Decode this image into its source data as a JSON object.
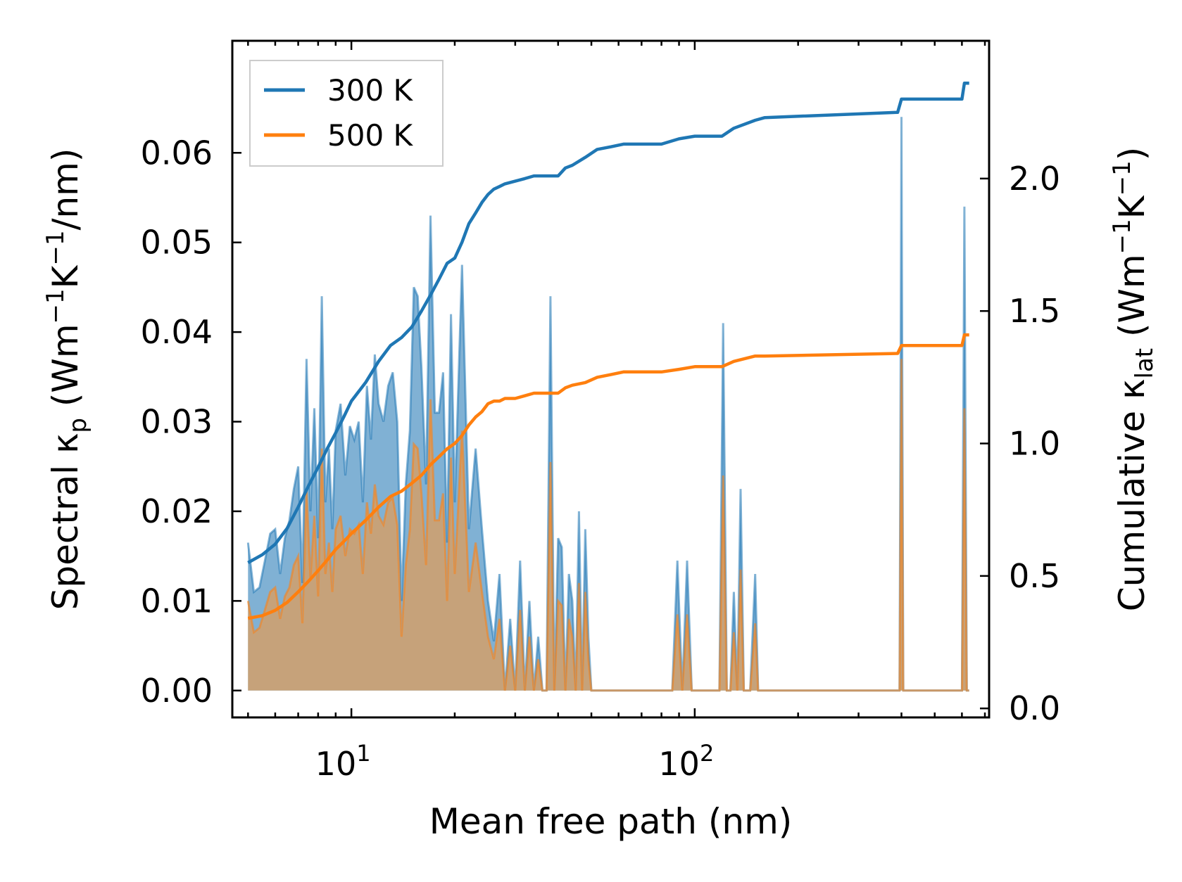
{
  "chart_data": {
    "type": "line",
    "title": "",
    "xlabel": "Mean free path (nm)",
    "ylabel_left": {
      "main": "Spectral κ",
      "sub": "p",
      "units_prefix": " (Wm",
      "sup1": "−1",
      "units_mid": "K",
      "sup2": "−1",
      "units_end": "/nm)"
    },
    "ylabel_right": {
      "main": "Cumulative κ",
      "sub": "lat",
      "units_prefix": " (Wm",
      "sup1": "−1",
      "units_mid": "K",
      "sup2": "−1",
      "units_end": ")"
    },
    "x_scale": "log",
    "xlim": [
      4.5,
      720
    ],
    "ylim_left": [
      -0.003,
      0.0725
    ],
    "ylim_right": [
      -0.034,
      2.52
    ],
    "x_ticks": [
      {
        "value": 10,
        "base": "10",
        "exp": "1"
      },
      {
        "value": 100,
        "base": "10",
        "exp": "2"
      }
    ],
    "y_ticks_left": [
      {
        "value": 0.0,
        "label": "0.00"
      },
      {
        "value": 0.01,
        "label": "0.01"
      },
      {
        "value": 0.02,
        "label": "0.02"
      },
      {
        "value": 0.03,
        "label": "0.03"
      },
      {
        "value": 0.04,
        "label": "0.04"
      },
      {
        "value": 0.05,
        "label": "0.05"
      },
      {
        "value": 0.06,
        "label": "0.06"
      }
    ],
    "y_ticks_right": [
      {
        "value": 0.0,
        "label": "0.0"
      },
      {
        "value": 0.5,
        "label": "0.5"
      },
      {
        "value": 1.0,
        "label": "1.0"
      },
      {
        "value": 1.5,
        "label": "1.5"
      },
      {
        "value": 2.0,
        "label": "2.0"
      }
    ],
    "legend": {
      "position": "top-left",
      "entries": [
        {
          "label": "300 K",
          "color": "#1f77b4"
        },
        {
          "label": "500 K",
          "color": "#ff7f0e"
        }
      ]
    },
    "series": [
      {
        "name": "300 K",
        "color": "#1f77b4",
        "spectral": {
          "x": [
            5.0,
            5.2,
            5.4,
            5.6,
            5.8,
            6.0,
            6.2,
            6.4,
            6.6,
            6.8,
            7.0,
            7.2,
            7.4,
            7.6,
            7.8,
            8.0,
            8.2,
            8.4,
            8.6,
            8.8,
            9.0,
            9.3,
            9.6,
            9.9,
            10.2,
            10.5,
            10.8,
            11.1,
            11.4,
            11.7,
            12.0,
            12.4,
            12.8,
            13.2,
            13.6,
            14.0,
            14.4,
            14.8,
            15.2,
            15.6,
            16.0,
            16.5,
            17.0,
            17.5,
            18.0,
            18.5,
            19.0,
            19.5,
            20.0,
            21.0,
            22.0,
            23.0,
            24.0,
            25.0,
            26.0,
            27.0,
            28.0,
            29.0,
            30.0,
            31.0,
            32.0,
            33.0,
            34.0,
            35.0,
            36.0,
            37.0,
            38.0,
            39.0,
            40.0,
            41.0,
            42.0,
            43.0,
            44.0,
            45.0,
            46.0,
            47.0,
            48.0,
            49.0,
            50.0,
            51.0,
            52.0,
            53.0,
            55.0,
            57.0,
            59.0,
            62.0,
            86.0,
            89.0,
            92.0,
            95.0,
            98.0,
            101.0,
            104.0,
            107.0,
            118.0,
            121.0,
            124.0,
            127.0,
            130.0,
            133.0,
            136.0,
            139.0,
            142.0,
            145.0,
            150.0,
            153.0,
            156.0,
            159.0,
            162.0,
            395.0,
            400.0,
            405.0,
            410.0,
            415.0,
            420.0,
            600.0,
            610.0,
            620.0,
            630.0
          ],
          "y": [
            0.0165,
            0.011,
            0.0115,
            0.0145,
            0.0175,
            0.018,
            0.013,
            0.017,
            0.019,
            0.0225,
            0.025,
            0.012,
            0.037,
            0.02,
            0.0315,
            0.017,
            0.044,
            0.021,
            0.027,
            0.018,
            0.029,
            0.032,
            0.024,
            0.0295,
            0.028,
            0.03,
            0.021,
            0.034,
            0.028,
            0.0375,
            0.032,
            0.03,
            0.034,
            0.0355,
            0.03,
            0.01,
            0.023,
            0.029,
            0.045,
            0.044,
            0.036,
            0.023,
            0.053,
            0.031,
            0.031,
            0.0355,
            0.0165,
            0.042,
            0.021,
            0.0475,
            0.018,
            0.027,
            0.018,
            0.01,
            0.0055,
            0.013,
            0.0,
            0.008,
            0.0,
            0.0145,
            0.0,
            0.01,
            0.0,
            0.006,
            0.0,
            0.0,
            0.044,
            0.0,
            0.017,
            0.016,
            0.0,
            0.013,
            0.01,
            0.0,
            0.02,
            0.0,
            0.018,
            0.006,
            0.0,
            0.0,
            0.0,
            0.0,
            0.0,
            0.0,
            0.0,
            0.0,
            0.0,
            0.0145,
            0.0,
            0.0145,
            0.0,
            0.0,
            0.0,
            0.0,
            0.0,
            0.041,
            0.0,
            0.0,
            0.011,
            0.0,
            0.0225,
            0.0,
            0.0,
            0.0,
            0.013,
            0.0,
            0.0,
            0.0,
            0.0,
            0.0,
            0.064,
            0.0,
            0.0,
            0.0,
            0.0,
            0.0,
            0.054,
            0.0,
            0.0
          ]
        },
        "cumulative": {
          "x": [
            5.0,
            5.5,
            6.0,
            6.5,
            7.0,
            7.5,
            8.0,
            8.5,
            9.0,
            9.5,
            10.0,
            11.0,
            12.0,
            13.0,
            14.0,
            15.0,
            16.0,
            17.0,
            18.0,
            19.0,
            20.0,
            21.0,
            22.0,
            23.0,
            24.0,
            25.0,
            26.0,
            27.0,
            28.0,
            30.0,
            32.0,
            34.0,
            36.0,
            38.0,
            40.0,
            42.0,
            44.0,
            48.0,
            52.0,
            57.0,
            62.0,
            80.0,
            90.0,
            100.0,
            120.0,
            130.0,
            150.0,
            160.0,
            390.0,
            400.0,
            600.0,
            610.0,
            630.0
          ],
          "y": [
            0.55,
            0.58,
            0.62,
            0.68,
            0.76,
            0.84,
            0.91,
            0.98,
            1.04,
            1.1,
            1.16,
            1.23,
            1.31,
            1.37,
            1.4,
            1.44,
            1.5,
            1.56,
            1.62,
            1.68,
            1.7,
            1.76,
            1.83,
            1.87,
            1.91,
            1.94,
            1.96,
            1.97,
            1.98,
            1.99,
            2.0,
            2.01,
            2.01,
            2.01,
            2.01,
            2.04,
            2.05,
            2.08,
            2.11,
            2.12,
            2.13,
            2.13,
            2.15,
            2.16,
            2.16,
            2.19,
            2.22,
            2.23,
            2.25,
            2.3,
            2.3,
            2.36,
            2.36
          ]
        }
      },
      {
        "name": "500 K",
        "color": "#ff7f0e",
        "spectral": {
          "x": [
            5.0,
            5.2,
            5.4,
            5.6,
            5.8,
            6.0,
            6.2,
            6.4,
            6.6,
            6.8,
            7.0,
            7.2,
            7.4,
            7.6,
            7.8,
            8.0,
            8.2,
            8.4,
            8.6,
            8.8,
            9.0,
            9.3,
            9.6,
            9.9,
            10.2,
            10.5,
            10.8,
            11.1,
            11.4,
            11.7,
            12.0,
            12.4,
            12.8,
            13.2,
            13.6,
            14.0,
            14.4,
            14.8,
            15.2,
            15.6,
            16.0,
            16.5,
            17.0,
            17.5,
            18.0,
            18.5,
            19.0,
            19.5,
            20.0,
            21.0,
            22.0,
            23.0,
            24.0,
            25.0,
            26.0,
            27.0,
            28.0,
            29.0,
            30.0,
            31.0,
            32.0,
            33.0,
            34.0,
            35.0,
            36.0,
            37.0,
            38.0,
            39.0,
            40.0,
            41.0,
            42.0,
            43.0,
            44.0,
            45.0,
            46.0,
            47.0,
            48.0,
            49.0,
            50.0,
            51.0,
            52.0,
            53.0,
            55.0,
            57.0,
            59.0,
            62.0,
            86.0,
            89.0,
            92.0,
            95.0,
            98.0,
            101.0,
            104.0,
            107.0,
            118.0,
            121.0,
            124.0,
            127.0,
            130.0,
            133.0,
            136.0,
            139.0,
            142.0,
            145.0,
            150.0,
            153.0,
            156.0,
            159.0,
            162.0,
            395.0,
            400.0,
            405.0,
            410.0,
            415.0,
            420.0,
            600.0,
            610.0,
            620.0,
            630.0
          ],
          "y": [
            0.01,
            0.0065,
            0.007,
            0.009,
            0.011,
            0.0115,
            0.008,
            0.0105,
            0.0115,
            0.014,
            0.015,
            0.0075,
            0.0225,
            0.0125,
            0.0195,
            0.0105,
            0.027,
            0.013,
            0.0165,
            0.011,
            0.018,
            0.0195,
            0.015,
            0.018,
            0.0175,
            0.0185,
            0.013,
            0.021,
            0.0175,
            0.023,
            0.0195,
            0.0185,
            0.021,
            0.0215,
            0.0185,
            0.006,
            0.014,
            0.018,
            0.0275,
            0.027,
            0.022,
            0.014,
            0.0325,
            0.019,
            0.019,
            0.022,
            0.01,
            0.026,
            0.013,
            0.029,
            0.011,
            0.0165,
            0.011,
            0.006,
            0.0035,
            0.008,
            0.0,
            0.005,
            0.0,
            0.009,
            0.0,
            0.006,
            0.0,
            0.0035,
            0.0,
            0.0,
            0.0255,
            0.0,
            0.01,
            0.0095,
            0.0,
            0.008,
            0.006,
            0.0,
            0.012,
            0.0,
            0.011,
            0.0035,
            0.0,
            0.0,
            0.0,
            0.0,
            0.0,
            0.0,
            0.0,
            0.0,
            0.0,
            0.0085,
            0.0,
            0.0085,
            0.0,
            0.0,
            0.0,
            0.0,
            0.0,
            0.024,
            0.0,
            0.0,
            0.0065,
            0.0,
            0.0135,
            0.0,
            0.0,
            0.0,
            0.0075,
            0.0,
            0.0,
            0.0,
            0.0,
            0.0,
            0.037,
            0.0,
            0.0,
            0.0,
            0.0,
            0.0,
            0.0315,
            0.0,
            0.0
          ]
        },
        "cumulative": {
          "x": [
            5.0,
            5.5,
            6.0,
            6.5,
            7.0,
            7.5,
            8.0,
            8.5,
            9.0,
            9.5,
            10.0,
            11.0,
            12.0,
            13.0,
            14.0,
            15.0,
            16.0,
            17.0,
            18.0,
            19.0,
            20.0,
            21.0,
            22.0,
            23.0,
            24.0,
            25.0,
            26.0,
            27.0,
            28.0,
            30.0,
            32.0,
            34.0,
            36.0,
            38.0,
            40.0,
            42.0,
            44.0,
            48.0,
            52.0,
            57.0,
            62.0,
            80.0,
            90.0,
            100.0,
            120.0,
            130.0,
            150.0,
            160.0,
            390.0,
            400.0,
            600.0,
            610.0,
            630.0
          ],
          "y": [
            0.34,
            0.35,
            0.37,
            0.4,
            0.44,
            0.48,
            0.52,
            0.56,
            0.6,
            0.63,
            0.66,
            0.71,
            0.76,
            0.8,
            0.82,
            0.85,
            0.88,
            0.92,
            0.95,
            0.98,
            1.0,
            1.03,
            1.07,
            1.1,
            1.12,
            1.15,
            1.16,
            1.16,
            1.17,
            1.17,
            1.18,
            1.19,
            1.19,
            1.19,
            1.19,
            1.21,
            1.22,
            1.23,
            1.25,
            1.26,
            1.27,
            1.27,
            1.28,
            1.29,
            1.29,
            1.31,
            1.33,
            1.33,
            1.34,
            1.37,
            1.37,
            1.41,
            1.41
          ]
        }
      }
    ]
  }
}
